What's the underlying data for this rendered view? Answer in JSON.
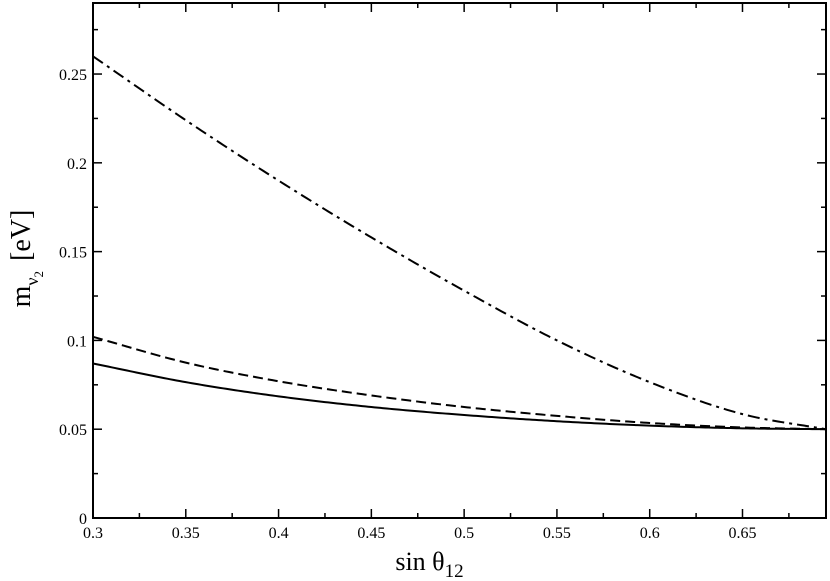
{
  "chart_data": {
    "type": "line",
    "title": "",
    "xlabel": {
      "prefix": "sin θ",
      "subscript": "12"
    },
    "ylabel": {
      "base": "m",
      "sub1": "ν",
      "sub2": "2",
      "unit": "[eV]"
    },
    "xlim": [
      0.3,
      0.695
    ],
    "ylim": [
      0,
      0.29
    ],
    "x_ticks": [
      0.3,
      0.35,
      0.4,
      0.45,
      0.5,
      0.55,
      0.6,
      0.65
    ],
    "x_tick_labels": [
      "0.3",
      "0.35",
      "0.4",
      "0.45",
      "0.5",
      "0.55",
      "0.6",
      "0.65"
    ],
    "y_ticks": [
      0,
      0.05,
      0.1,
      0.15,
      0.2,
      0.25
    ],
    "y_tick_labels": [
      "0",
      "0.05",
      "0.1",
      "0.15",
      "0.2",
      "0.25"
    ],
    "grid": false,
    "legend": "none",
    "series": [
      {
        "style": "solid",
        "x": [
          0.3,
          0.35,
          0.4,
          0.45,
          0.5,
          0.55,
          0.6,
          0.65,
          0.695
        ],
        "y": [
          0.087,
          0.0765,
          0.0685,
          0.0625,
          0.058,
          0.0545,
          0.052,
          0.0505,
          0.05
        ]
      },
      {
        "style": "dashed",
        "x": [
          0.3,
          0.35,
          0.4,
          0.45,
          0.5,
          0.55,
          0.6,
          0.65,
          0.695
        ],
        "y": [
          0.102,
          0.0875,
          0.077,
          0.069,
          0.0625,
          0.0575,
          0.0535,
          0.051,
          0.05
        ]
      },
      {
        "style": "dashdot",
        "x": [
          0.3,
          0.35,
          0.4,
          0.45,
          0.5,
          0.55,
          0.6,
          0.65,
          0.695
        ],
        "y": [
          0.26,
          0.224,
          0.19,
          0.158,
          0.128,
          0.1,
          0.0765,
          0.0585,
          0.05
        ]
      }
    ]
  }
}
